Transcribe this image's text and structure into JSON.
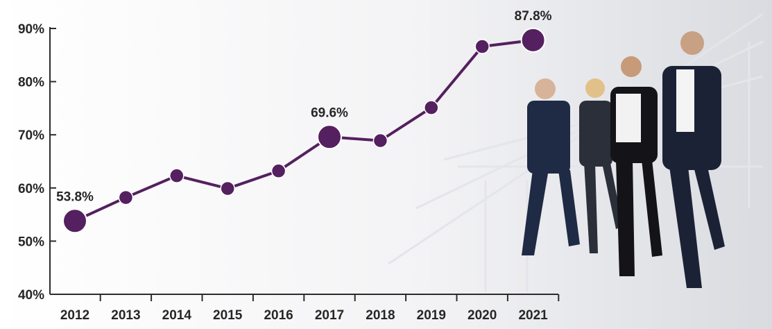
{
  "chart_data": {
    "type": "line",
    "title": "",
    "xlabel": "",
    "ylabel": "",
    "x": [
      "2012",
      "2013",
      "2014",
      "2015",
      "2016",
      "2017",
      "2018",
      "2019",
      "2020",
      "2021"
    ],
    "series": [
      {
        "values": [
          53.8,
          58.2,
          62.3,
          59.9,
          63.2,
          69.6,
          68.9,
          75.1,
          86.6,
          87.8
        ]
      }
    ],
    "ylim": [
      40,
      90
    ],
    "yticks": [
      "40%",
      "50%",
      "60%",
      "70%",
      "80%",
      "90%"
    ],
    "data_labels": [
      {
        "index": 0,
        "text": "53.8%"
      },
      {
        "index": 5,
        "text": "69.6%"
      },
      {
        "index": 9,
        "text": "87.8%"
      }
    ],
    "highlight_points": [
      0,
      5,
      9
    ],
    "grid": false,
    "line_color": "#55205f",
    "axis_color": "#2b2b2b",
    "background_image": "business-people-walking-photo"
  }
}
